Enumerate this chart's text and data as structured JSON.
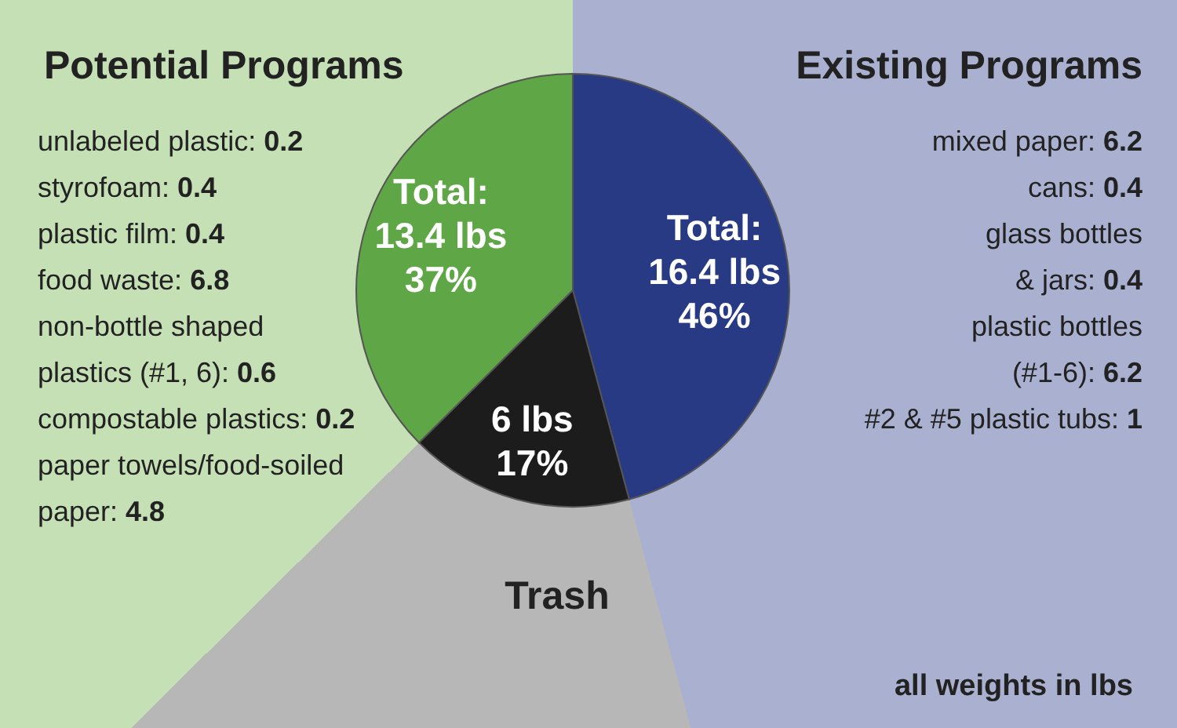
{
  "chart_data": {
    "type": "pie",
    "categories": [
      "Existing Programs",
      "Trash",
      "Potential Programs"
    ],
    "values": [
      16.4,
      6,
      13.4
    ],
    "colors": [
      "#283a84",
      "#1c1c1c",
      "#5ea646"
    ],
    "value_labels": [
      "Total:\n16.4 lbs\n46%",
      "6 lbs\n17%",
      "Total:\n13.4 lbs\n37%"
    ],
    "annotations": [
      "unlabeled plastic: 0.2\nstyrofoam: 0.4\nplastic film: 0.4\nfood waste: 6.8\nnon-bottle shaped\nplastics (#1, 6): 0.6\ncompostable plastics: 0.2\npaper towels/food-soiled\npaper: 4.8",
      "mixed paper: 6.2\ncans: 0.4\nglass bottles\n& jars: 0.4\nplastic bottles\n(#1-6): 6.2\n#2 & #5 plastic tubs: 1",
      "all weights in lbs"
    ]
  }
}
